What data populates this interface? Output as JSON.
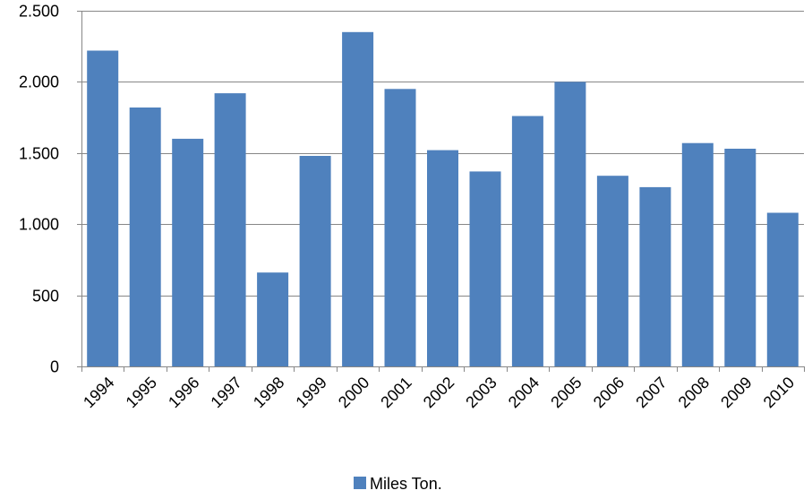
{
  "chart_data": {
    "type": "bar",
    "categories": [
      "1994",
      "1995",
      "1996",
      "1997",
      "1998",
      "1999",
      "2000",
      "2001",
      "2002",
      "2003",
      "2004",
      "2005",
      "2006",
      "2007",
      "2008",
      "2009",
      "2010"
    ],
    "series": [
      {
        "name": "Miles Ton.",
        "color": "#4F81BD",
        "values": [
          2220,
          1820,
          1600,
          1920,
          660,
          1480,
          2350,
          1950,
          1520,
          1370,
          1760,
          2000,
          1340,
          1260,
          1570,
          1530,
          1080
        ]
      }
    ],
    "y_ticks": [
      0,
      500,
      1000,
      1500,
      2000,
      2500
    ],
    "y_tick_labels": [
      "0",
      "500",
      "1.000",
      "1.500",
      "2.000",
      "2.500"
    ],
    "ylim": [
      0,
      2500
    ],
    "grid": true,
    "legend_position": "bottom"
  }
}
